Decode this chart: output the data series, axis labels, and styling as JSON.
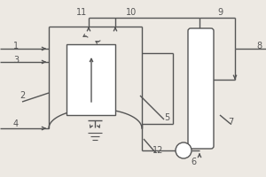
{
  "bg_color": "#ede9e3",
  "line_color": "#555555",
  "fill_color": "#ffffff",
  "lw": 1.0
}
